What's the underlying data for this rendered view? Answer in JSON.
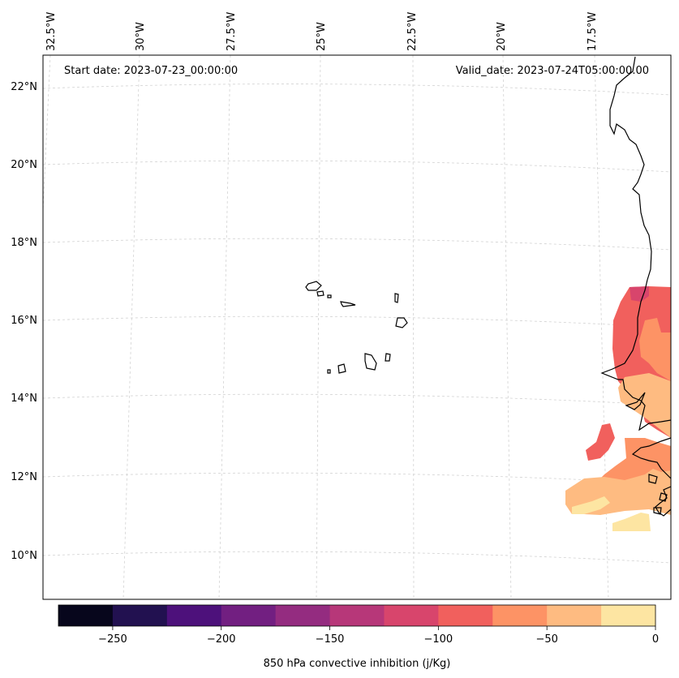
{
  "map": {
    "start_date": "Start date: 2023-07-23_00:00:00",
    "valid_date": "Valid_date: 2023-07-24T05:00:00.00",
    "lon_labels": [
      "32.5°W",
      "30°W",
      "27.5°W",
      "25°W",
      "22.5°W",
      "20°W",
      "17.5°W"
    ],
    "lat_labels": [
      "22°N",
      "20°N",
      "18°N",
      "16°N",
      "14°N",
      "12°N",
      "10°N"
    ]
  },
  "colorbar": {
    "label": "850 hPa convective inhibition (j/Kg)",
    "ticks": [
      "−250",
      "−200",
      "−150",
      "−100",
      "−50",
      "0"
    ],
    "levels": [
      -275,
      -250,
      -225,
      -200,
      -175,
      -150,
      -125,
      -100,
      -75,
      -50,
      -25,
      0
    ],
    "colors": [
      "#07061c",
      "#221150",
      "#4d117b",
      "#721f81",
      "#942c80",
      "#b73779",
      "#d8456c",
      "#f1605d",
      "#fd9365",
      "#febb81",
      "#fde5a2"
    ]
  },
  "colors": {
    "grid": "#d0d0d0",
    "coast": "#000000",
    "frame": "#000000"
  }
}
